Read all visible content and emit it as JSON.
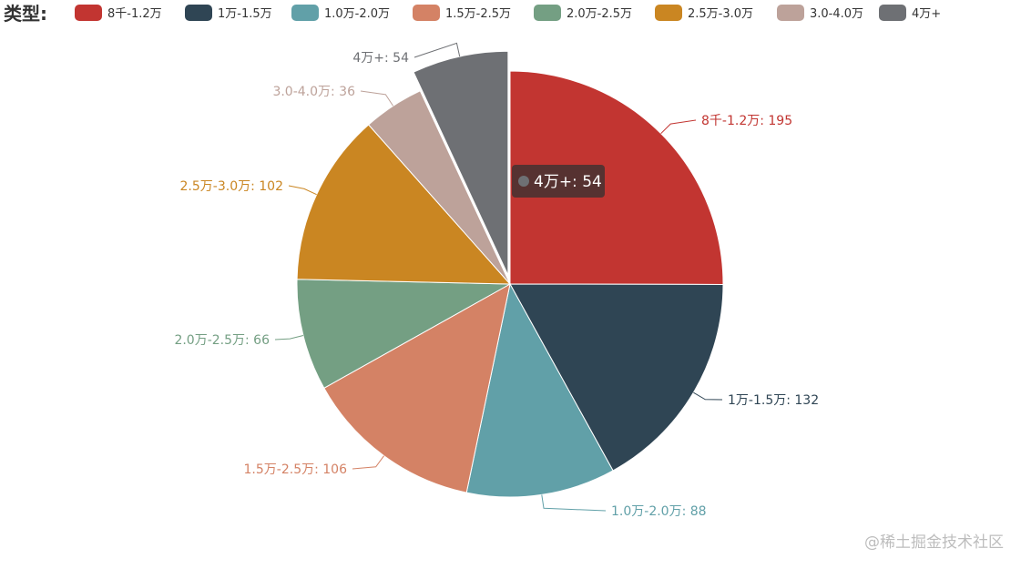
{
  "chart_data": {
    "type": "pie",
    "legend_title": "类型:",
    "legend_position": "top-left",
    "categories": [
      "8千-1.2万",
      "1万-1.5万",
      "1.0万-2.0万",
      "1.5万-2.5万",
      "2.0万-2.5万",
      "2.5万-3.0万",
      "3.0-4.0万",
      "4万+"
    ],
    "values": [
      195,
      132,
      88,
      106,
      66,
      102,
      36,
      54
    ],
    "colors": [
      "#c23531",
      "#2f4554",
      "#61a0a8",
      "#d48265",
      "#749f83",
      "#ca8622",
      "#bda29a",
      "#6e7074"
    ],
    "labels": [
      "8千-1.2万: 195",
      "1万-1.5万: 132",
      "1.0万-2.0万: 88",
      "1.5万-2.5万: 106",
      "2.0万-2.5万: 66",
      "2.5万-3.0万: 102",
      "3.0-4.0万: 36",
      "4万+: 54"
    ],
    "highlighted_index": 7,
    "tooltip": "4万+: 54"
  },
  "watermark": "@稀土掘金技术社区"
}
